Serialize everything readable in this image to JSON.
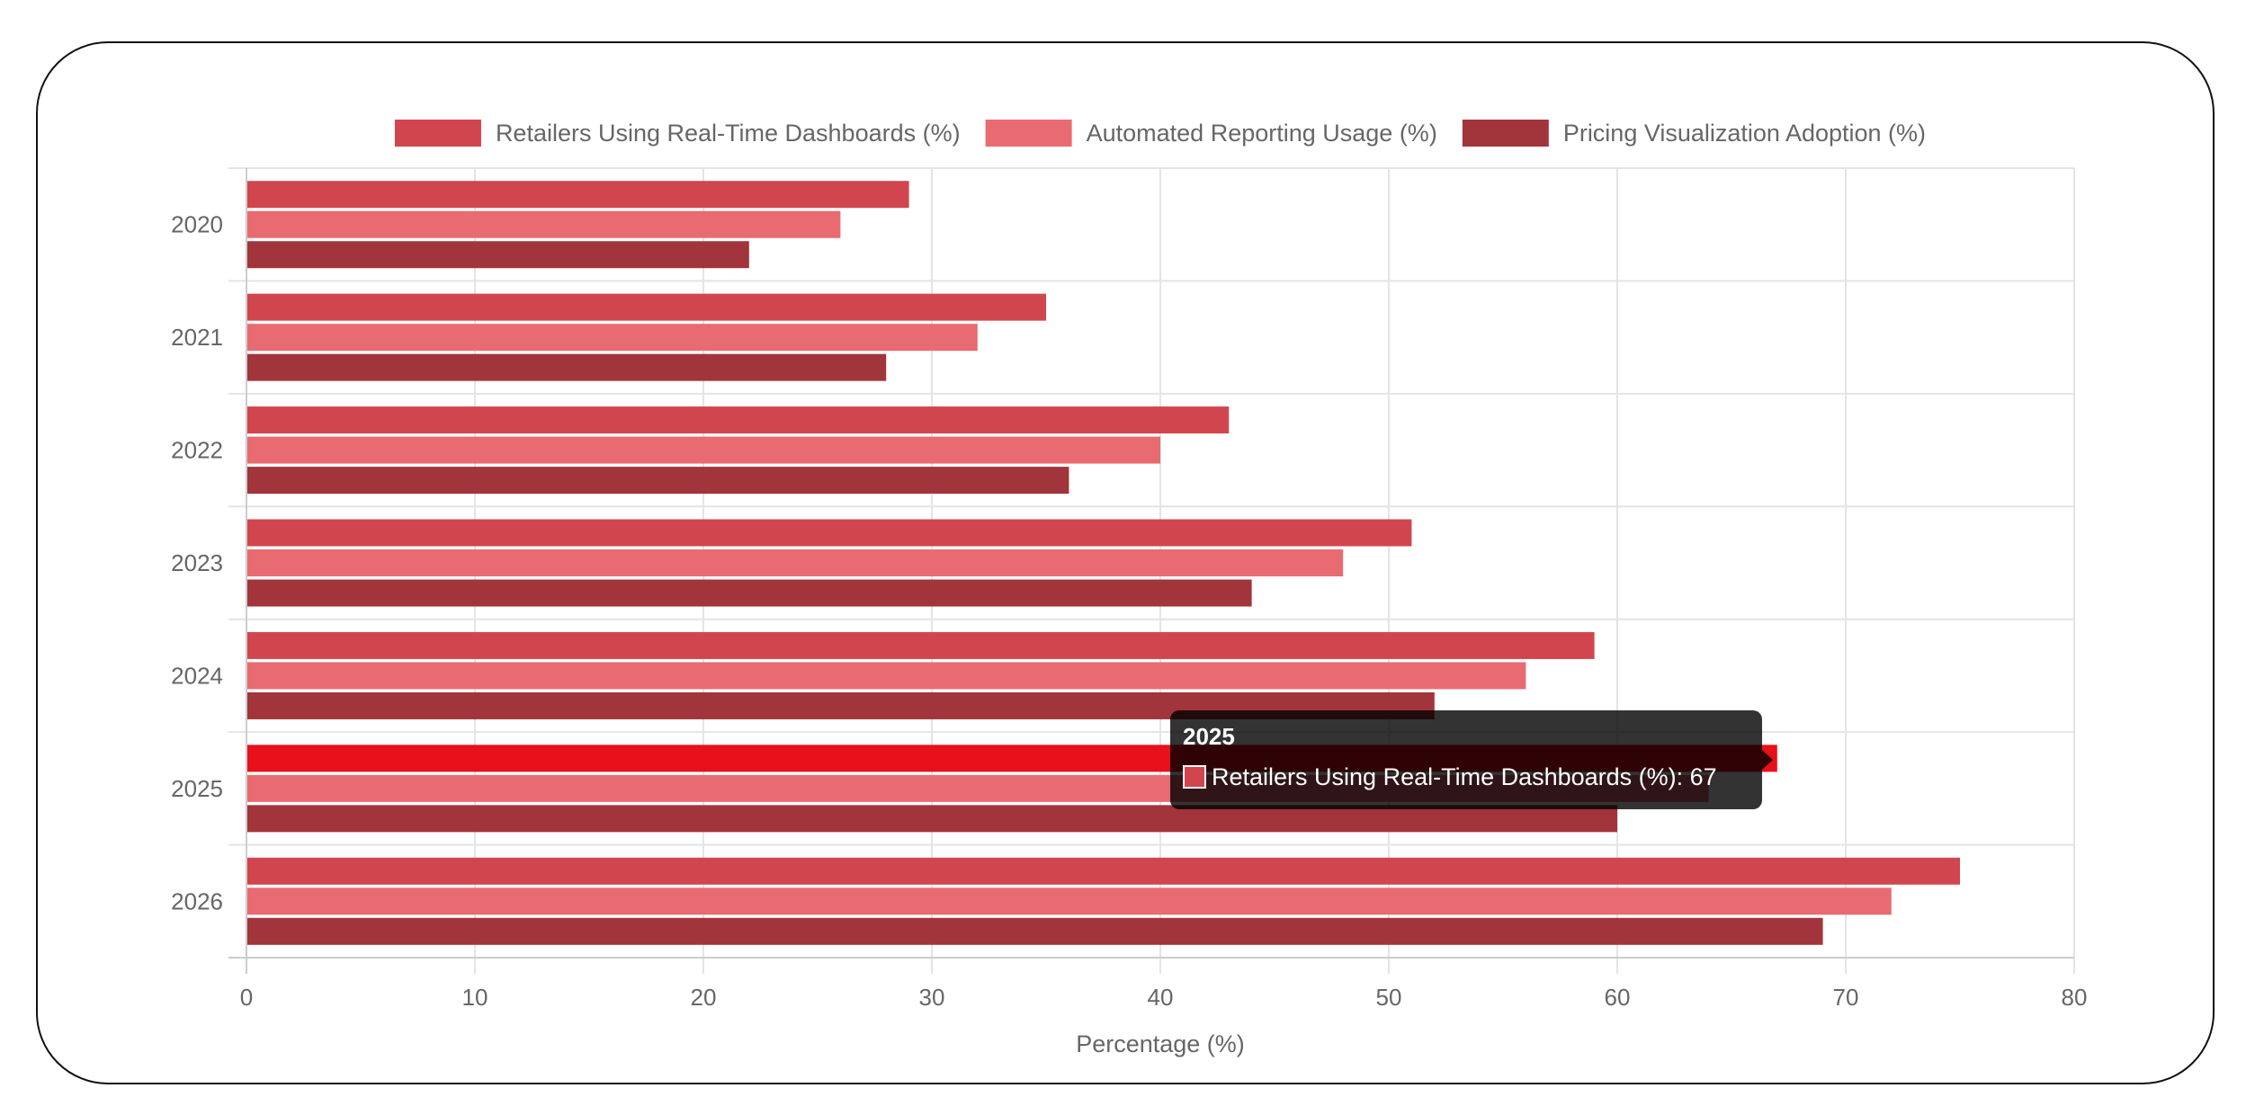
{
  "chart_data": {
    "type": "bar",
    "orientation": "horizontal",
    "categories": [
      "2020",
      "2021",
      "2022",
      "2023",
      "2024",
      "2025",
      "2026"
    ],
    "series": [
      {
        "name": "Retailers Using Real-Time Dashboards (%)",
        "color": "#d1464e",
        "values": [
          29,
          35,
          43,
          51,
          59,
          67,
          75
        ]
      },
      {
        "name": "Automated Reporting Usage (%)",
        "color": "#e96b72",
        "values": [
          26,
          32,
          40,
          48,
          56,
          64,
          72
        ]
      },
      {
        "name": "Pricing Visualization Adoption (%)",
        "color": "#a2343b",
        "values": [
          22,
          28,
          36,
          44,
          52,
          60,
          69
        ]
      }
    ],
    "highlight": {
      "series": 0,
      "category": 5,
      "color": "#e8101a"
    },
    "xlabel": "Percentage (%)",
    "ylabel": "",
    "xlim": [
      0,
      80
    ],
    "xticks": [
      0,
      10,
      20,
      30,
      40,
      50,
      60,
      70,
      80
    ],
    "grid": true,
    "legend_position": "top"
  },
  "tooltip": {
    "title": "2025",
    "label": "Retailers Using Real-Time Dashboards (%): 67",
    "swatch_color": "#d1464e"
  }
}
